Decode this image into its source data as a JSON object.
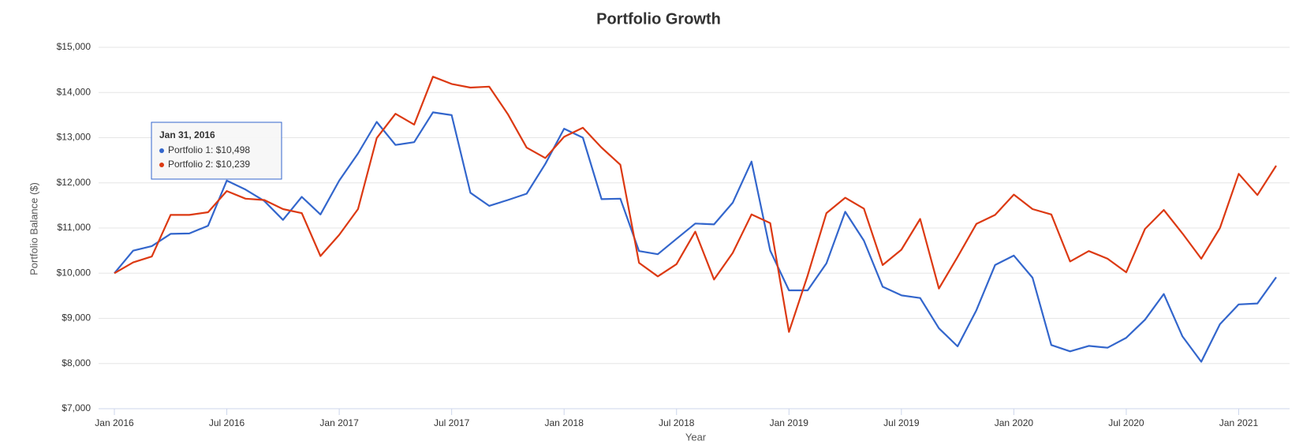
{
  "chart_data": {
    "type": "line",
    "title": "Portfolio Growth",
    "x_label": "Year",
    "y_label": "Portfolio Balance ($)",
    "categories": [
      "Jan 2016",
      null,
      null,
      null,
      null,
      null,
      "Jul 2016",
      null,
      null,
      null,
      null,
      null,
      "Jan 2017",
      null,
      null,
      null,
      null,
      null,
      "Jul 2017",
      null,
      null,
      null,
      null,
      null,
      "Jan 2018",
      null,
      null,
      null,
      null,
      null,
      "Jul 2018",
      null,
      null,
      null,
      null,
      null,
      "Jan 2019",
      null,
      null,
      null,
      null,
      null,
      "Jul 2019",
      null,
      null,
      null,
      null,
      null,
      "Jan 2020",
      null,
      null,
      null,
      null,
      null,
      "Jul 2020",
      null,
      null,
      null,
      null,
      null,
      "Jan 2021",
      null,
      null
    ],
    "series": [
      {
        "name": "Portfolio 1",
        "color": "#3366cc",
        "values": [
          10000,
          10498,
          10600,
          10870,
          10880,
          11050,
          12050,
          11850,
          11600,
          11180,
          11690,
          11300,
          12050,
          12650,
          13350,
          12840,
          12900,
          13560,
          13500,
          11780,
          11490,
          11620,
          11760,
          12420,
          13200,
          13000,
          11640,
          11650,
          10490,
          10420,
          10760,
          11100,
          11080,
          11560,
          12470,
          10500,
          9620,
          9620,
          10220,
          11360,
          10720,
          9700,
          9510,
          9450,
          8780,
          8380,
          9180,
          10180,
          10390,
          9900,
          8410,
          8270,
          8390,
          8350,
          8570,
          8970,
          9540,
          8600,
          8040,
          8870,
          9310,
          9330,
          9910
        ]
      },
      {
        "name": "Portfolio 2",
        "color": "#dc3912",
        "values": [
          10000,
          10239,
          10370,
          11290,
          11290,
          11350,
          11820,
          11650,
          11620,
          11420,
          11330,
          10380,
          10850,
          11420,
          12990,
          13530,
          13290,
          14350,
          14190,
          14110,
          14130,
          13520,
          12780,
          12550,
          13020,
          13220,
          12780,
          12400,
          10230,
          9930,
          10200,
          10920,
          9860,
          10450,
          11300,
          11110,
          8700,
          9950,
          11330,
          11670,
          11430,
          10180,
          10520,
          11200,
          9660,
          10360,
          11090,
          11290,
          11740,
          11420,
          11300,
          10260,
          10490,
          10320,
          10020,
          10980,
          11400,
          10880,
          10320,
          11000,
          12200,
          11730,
          12380
        ]
      }
    ],
    "ylim": [
      7000,
      15000
    ],
    "yticks": [
      {
        "value": 7000,
        "label": "$7,000"
      },
      {
        "value": 8000,
        "label": "$8,000"
      },
      {
        "value": 9000,
        "label": "$9,000"
      },
      {
        "value": 10000,
        "label": "$10,000"
      },
      {
        "value": 11000,
        "label": "$11,000"
      },
      {
        "value": 12000,
        "label": "$12,000"
      },
      {
        "value": 13000,
        "label": "$13,000"
      },
      {
        "value": 14000,
        "label": "$14,000"
      },
      {
        "value": 15000,
        "label": "$15,000"
      }
    ],
    "grid": true,
    "tooltip": {
      "title": "Jan 31, 2016",
      "items": [
        "Portfolio 1: $10,498",
        "Portfolio 2: $10,239"
      ]
    }
  }
}
